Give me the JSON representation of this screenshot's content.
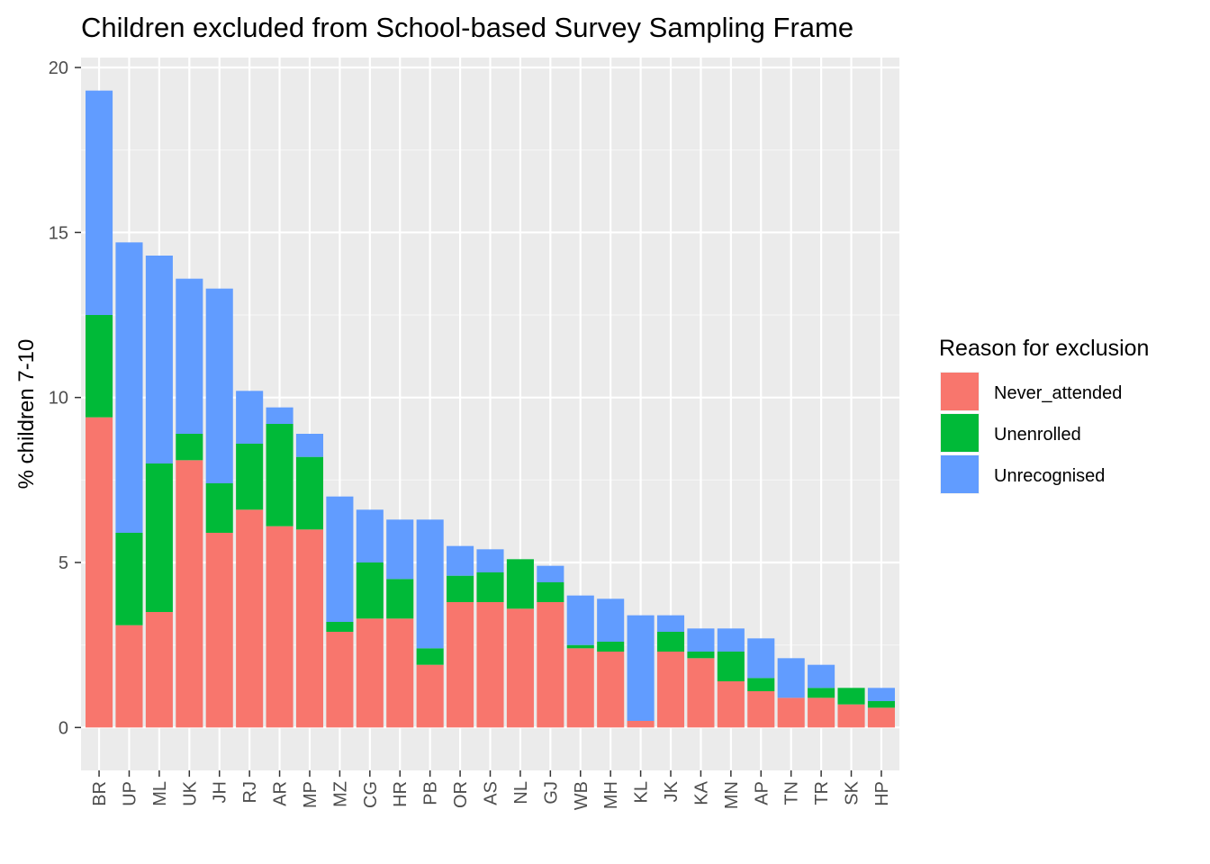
{
  "chart_data": {
    "type": "bar",
    "stacked": true,
    "title": "Children excluded from School-based Survey Sampling Frame",
    "xlabel": "",
    "ylabel": "% children 7-10",
    "ylim": [
      -1.3,
      20.3
    ],
    "yticks": [
      0,
      5,
      10,
      15,
      20
    ],
    "grid": true,
    "legend": {
      "title": "Reason for exclusion",
      "placement": "right"
    },
    "categories": [
      "BR",
      "UP",
      "ML",
      "UK",
      "JH",
      "RJ",
      "AR",
      "MP",
      "MZ",
      "CG",
      "HR",
      "PB",
      "OR",
      "AS",
      "NL",
      "GJ",
      "WB",
      "MH",
      "KL",
      "JK",
      "KA",
      "MN",
      "AP",
      "TN",
      "TR",
      "SK",
      "HP"
    ],
    "series": [
      {
        "name": "Never_attended",
        "color": "#F8766D",
        "values": [
          9.4,
          3.1,
          3.5,
          8.1,
          5.9,
          6.6,
          6.1,
          6.0,
          2.9,
          3.3,
          3.3,
          1.9,
          3.8,
          3.8,
          3.6,
          3.8,
          2.4,
          2.3,
          0.2,
          2.3,
          2.1,
          1.4,
          1.1,
          0.9,
          0.9,
          0.7,
          0.6
        ]
      },
      {
        "name": "Unenrolled",
        "color": "#00BA38",
        "values": [
          3.1,
          2.8,
          4.5,
          0.8,
          1.5,
          2.0,
          3.1,
          2.2,
          0.3,
          1.7,
          1.2,
          0.5,
          0.8,
          0.9,
          1.5,
          0.6,
          0.1,
          0.3,
          0.0,
          0.6,
          0.2,
          0.9,
          0.4,
          0.0,
          0.3,
          0.5,
          0.2
        ]
      },
      {
        "name": "Unrecognised",
        "color": "#619CFF",
        "values": [
          6.8,
          8.8,
          6.3,
          4.7,
          5.9,
          1.6,
          0.5,
          0.7,
          3.8,
          1.6,
          1.8,
          3.9,
          0.9,
          0.7,
          0.0,
          0.5,
          1.5,
          1.3,
          3.2,
          0.5,
          0.7,
          0.7,
          1.2,
          1.2,
          0.7,
          0.0,
          0.4
        ]
      }
    ]
  },
  "colors": {
    "panel_background": "#EBEBEB",
    "grid_major": "#FFFFFF",
    "grid_minor": "#F5F5F5"
  }
}
